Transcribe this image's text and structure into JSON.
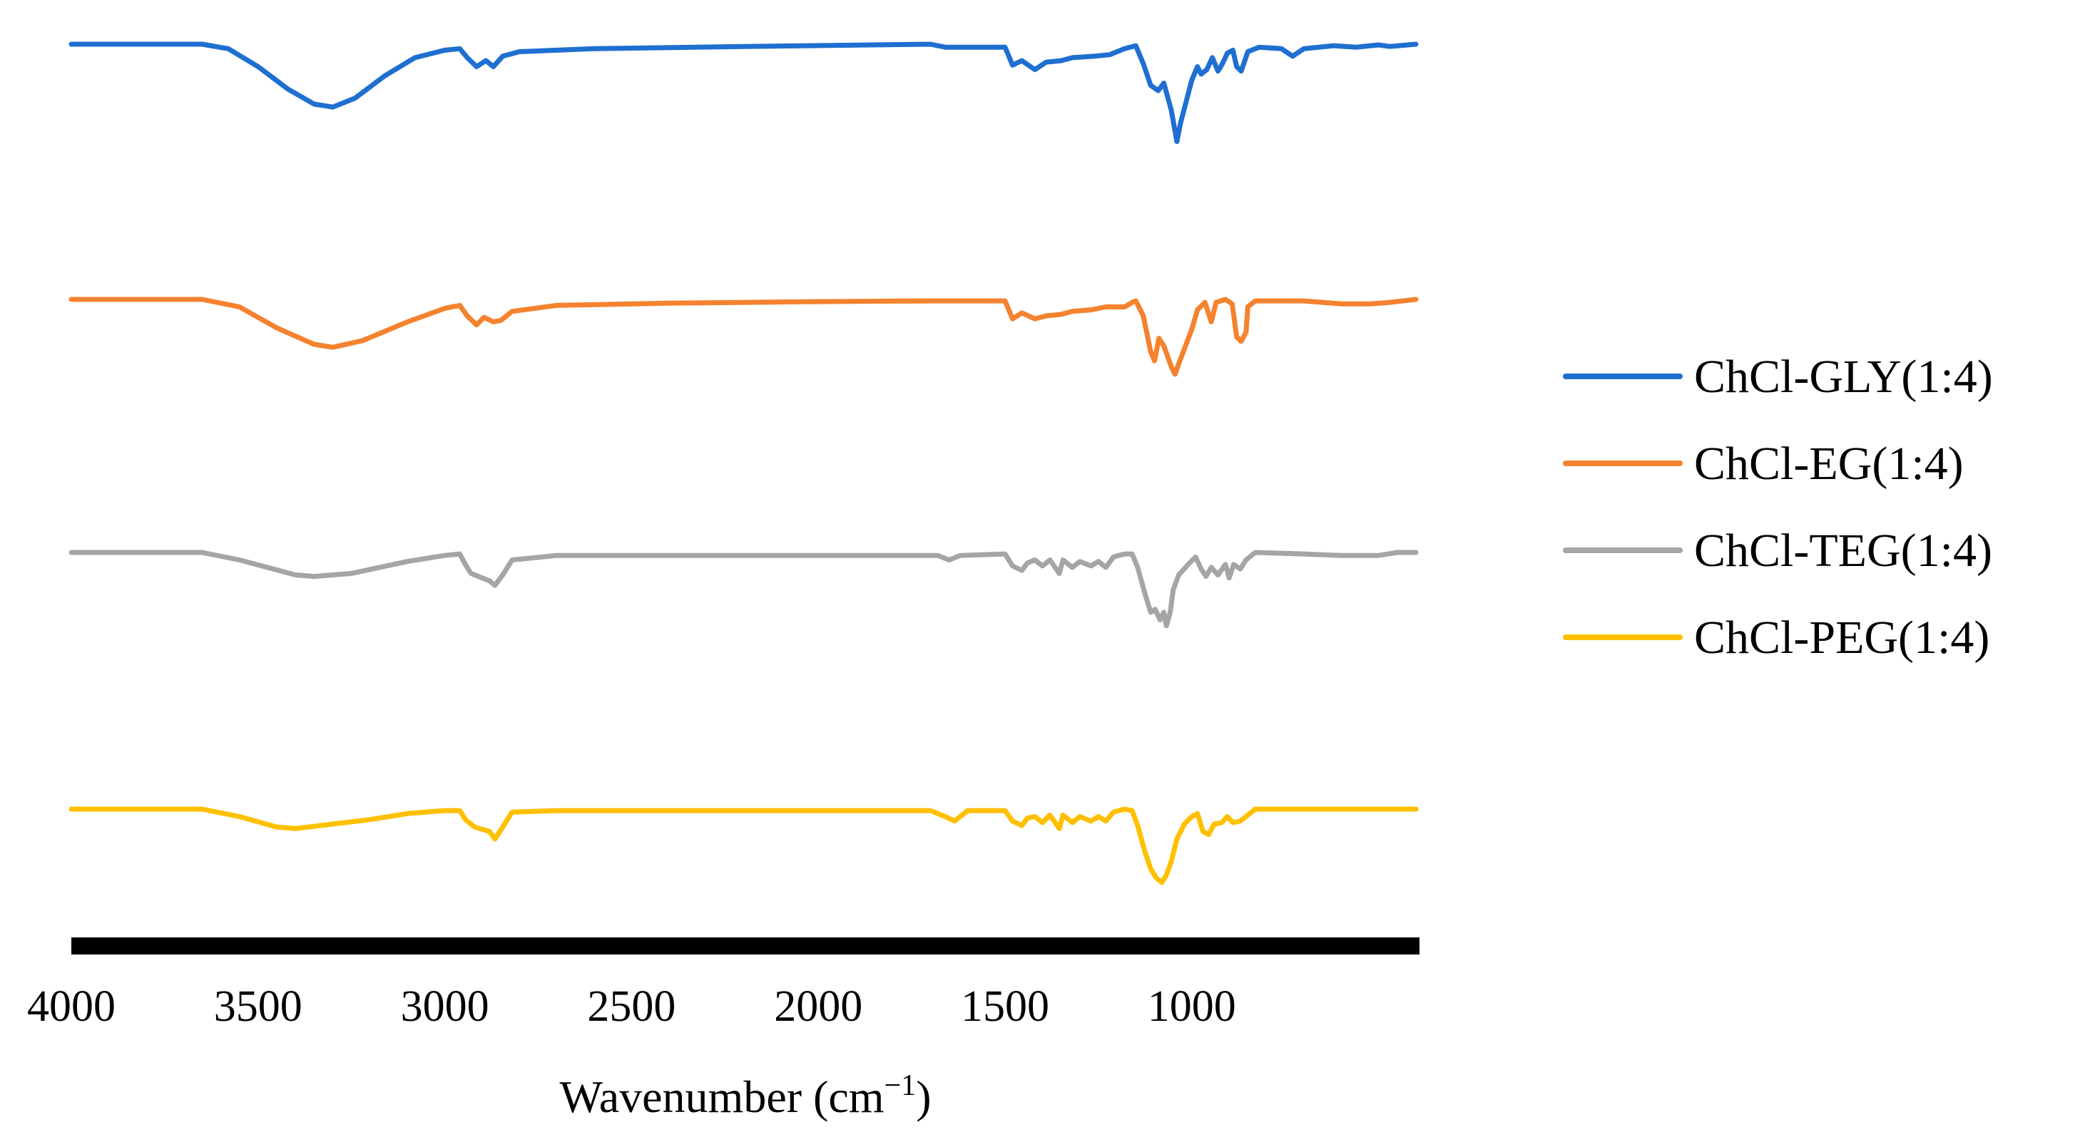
{
  "chart_data": {
    "type": "line",
    "title": "",
    "xlabel_main": "Wavenumber (cm",
    "xlabel_sup": "−1",
    "xlabel_close": ")",
    "ylabel": "",
    "xlim": [
      4000,
      400
    ],
    "x_reversed": true,
    "y_axis_visible": false,
    "grid": false,
    "legend_position": "right",
    "x_ticks": [
      4000,
      3500,
      3000,
      2500,
      2000,
      1500,
      1000
    ],
    "x_tick_labels": [
      "4000",
      "3500",
      "3000",
      "2500",
      "2000",
      "1500",
      "1000"
    ],
    "series": [
      {
        "name": "ChCl-GLY(1:4)",
        "color": "#1F6FD1",
        "offset": 3,
        "points": [
          [
            4000,
            0
          ],
          [
            3650,
            0
          ],
          [
            3580,
            -0.06
          ],
          [
            3500,
            -0.3
          ],
          [
            3420,
            -0.6
          ],
          [
            3350,
            -0.8
          ],
          [
            3300,
            -0.84
          ],
          [
            3240,
            -0.72
          ],
          [
            3160,
            -0.42
          ],
          [
            3080,
            -0.18
          ],
          [
            3000,
            -0.08
          ],
          [
            2960,
            -0.06
          ],
          [
            2940,
            -0.18
          ],
          [
            2915,
            -0.3
          ],
          [
            2890,
            -0.22
          ],
          [
            2870,
            -0.3
          ],
          [
            2845,
            -0.16
          ],
          [
            2800,
            -0.1
          ],
          [
            2600,
            -0.06
          ],
          [
            2200,
            -0.03
          ],
          [
            1700,
            0
          ],
          [
            1660,
            -0.04
          ],
          [
            1500,
            -0.04
          ],
          [
            1480,
            -0.28
          ],
          [
            1455,
            -0.22
          ],
          [
            1420,
            -0.34
          ],
          [
            1390,
            -0.24
          ],
          [
            1350,
            -0.22
          ],
          [
            1320,
            -0.18
          ],
          [
            1260,
            -0.16
          ],
          [
            1220,
            -0.14
          ],
          [
            1180,
            -0.06
          ],
          [
            1150,
            -0.02
          ],
          [
            1130,
            -0.26
          ],
          [
            1110,
            -0.55
          ],
          [
            1090,
            -0.62
          ],
          [
            1075,
            -0.52
          ],
          [
            1055,
            -0.88
          ],
          [
            1040,
            -1.3
          ],
          [
            1030,
            -1.05
          ],
          [
            1000,
            -0.48
          ],
          [
            985,
            -0.3
          ],
          [
            975,
            -0.4
          ],
          [
            960,
            -0.34
          ],
          [
            945,
            -0.18
          ],
          [
            930,
            -0.36
          ],
          [
            918,
            -0.26
          ],
          [
            905,
            -0.12
          ],
          [
            890,
            -0.08
          ],
          [
            880,
            -0.3
          ],
          [
            868,
            -0.36
          ],
          [
            850,
            -0.1
          ],
          [
            820,
            -0.04
          ],
          [
            760,
            -0.06
          ],
          [
            730,
            -0.16
          ],
          [
            700,
            -0.06
          ],
          [
            620,
            -0.02
          ],
          [
            560,
            -0.04
          ],
          [
            500,
            -0.01
          ],
          [
            470,
            -0.03
          ],
          [
            400,
            0
          ]
        ]
      },
      {
        "name": "ChCl-EG(1:4)",
        "color": "#F5822E",
        "offset": 2,
        "points": [
          [
            4000,
            0
          ],
          [
            3650,
            0
          ],
          [
            3550,
            -0.1
          ],
          [
            3450,
            -0.38
          ],
          [
            3350,
            -0.6
          ],
          [
            3300,
            -0.64
          ],
          [
            3220,
            -0.55
          ],
          [
            3100,
            -0.3
          ],
          [
            3000,
            -0.12
          ],
          [
            2960,
            -0.08
          ],
          [
            2940,
            -0.22
          ],
          [
            2915,
            -0.34
          ],
          [
            2895,
            -0.24
          ],
          [
            2870,
            -0.3
          ],
          [
            2850,
            -0.28
          ],
          [
            2820,
            -0.16
          ],
          [
            2700,
            -0.08
          ],
          [
            2400,
            -0.05
          ],
          [
            2000,
            -0.03
          ],
          [
            1700,
            -0.02
          ],
          [
            1500,
            -0.02
          ],
          [
            1480,
            -0.26
          ],
          [
            1455,
            -0.18
          ],
          [
            1420,
            -0.26
          ],
          [
            1390,
            -0.22
          ],
          [
            1350,
            -0.2
          ],
          [
            1320,
            -0.16
          ],
          [
            1270,
            -0.14
          ],
          [
            1230,
            -0.1
          ],
          [
            1180,
            -0.1
          ],
          [
            1160,
            -0.04
          ],
          [
            1150,
            -0.02
          ],
          [
            1130,
            -0.22
          ],
          [
            1110,
            -0.7
          ],
          [
            1100,
            -0.82
          ],
          [
            1088,
            -0.52
          ],
          [
            1075,
            -0.62
          ],
          [
            1055,
            -0.9
          ],
          [
            1045,
            -1.0
          ],
          [
            1035,
            -0.86
          ],
          [
            1000,
            -0.4
          ],
          [
            985,
            -0.14
          ],
          [
            965,
            -0.04
          ],
          [
            948,
            -0.3
          ],
          [
            935,
            -0.04
          ],
          [
            910,
            0
          ],
          [
            892,
            -0.06
          ],
          [
            880,
            -0.5
          ],
          [
            868,
            -0.56
          ],
          [
            855,
            -0.44
          ],
          [
            850,
            -0.1
          ],
          [
            830,
            -0.02
          ],
          [
            700,
            -0.02
          ],
          [
            600,
            -0.06
          ],
          [
            520,
            -0.06
          ],
          [
            470,
            -0.04
          ],
          [
            400,
            0
          ]
        ]
      },
      {
        "name": "ChCl-TEG(1:4)",
        "color": "#A5A5A5",
        "offset": 1,
        "points": [
          [
            4000,
            0
          ],
          [
            3650,
            0
          ],
          [
            3550,
            -0.1
          ],
          [
            3400,
            -0.3
          ],
          [
            3350,
            -0.32
          ],
          [
            3250,
            -0.28
          ],
          [
            3100,
            -0.12
          ],
          [
            3000,
            -0.04
          ],
          [
            2960,
            -0.02
          ],
          [
            2945,
            -0.16
          ],
          [
            2930,
            -0.28
          ],
          [
            2900,
            -0.34
          ],
          [
            2880,
            -0.38
          ],
          [
            2866,
            -0.44
          ],
          [
            2845,
            -0.3
          ],
          [
            2820,
            -0.1
          ],
          [
            2700,
            -0.04
          ],
          [
            2000,
            -0.04
          ],
          [
            1680,
            -0.04
          ],
          [
            1650,
            -0.1
          ],
          [
            1620,
            -0.04
          ],
          [
            1500,
            -0.02
          ],
          [
            1480,
            -0.18
          ],
          [
            1455,
            -0.24
          ],
          [
            1440,
            -0.14
          ],
          [
            1420,
            -0.1
          ],
          [
            1400,
            -0.18
          ],
          [
            1380,
            -0.1
          ],
          [
            1355,
            -0.28
          ],
          [
            1345,
            -0.1
          ],
          [
            1320,
            -0.2
          ],
          [
            1300,
            -0.12
          ],
          [
            1270,
            -0.18
          ],
          [
            1250,
            -0.12
          ],
          [
            1230,
            -0.2
          ],
          [
            1210,
            -0.06
          ],
          [
            1180,
            -0.02
          ],
          [
            1160,
            -0.02
          ],
          [
            1145,
            -0.2
          ],
          [
            1125,
            -0.56
          ],
          [
            1110,
            -0.8
          ],
          [
            1098,
            -0.76
          ],
          [
            1085,
            -0.9
          ],
          [
            1075,
            -0.8
          ],
          [
            1068,
            -0.98
          ],
          [
            1058,
            -0.8
          ],
          [
            1050,
            -0.5
          ],
          [
            1035,
            -0.3
          ],
          [
            1010,
            -0.16
          ],
          [
            990,
            -0.06
          ],
          [
            975,
            -0.22
          ],
          [
            962,
            -0.32
          ],
          [
            948,
            -0.2
          ],
          [
            930,
            -0.3
          ],
          [
            910,
            -0.16
          ],
          [
            900,
            -0.34
          ],
          [
            888,
            -0.16
          ],
          [
            870,
            -0.22
          ],
          [
            855,
            -0.1
          ],
          [
            830,
            0
          ],
          [
            700,
            -0.02
          ],
          [
            600,
            -0.04
          ],
          [
            500,
            -0.04
          ],
          [
            450,
            0
          ],
          [
            400,
            0
          ]
        ]
      },
      {
        "name": "ChCl-PEG(1:4)",
        "color": "#FFC000",
        "offset": 0,
        "points": [
          [
            4000,
            0
          ],
          [
            3650,
            0
          ],
          [
            3550,
            -0.1
          ],
          [
            3450,
            -0.24
          ],
          [
            3400,
            -0.26
          ],
          [
            3300,
            -0.2
          ],
          [
            3200,
            -0.14
          ],
          [
            3100,
            -0.06
          ],
          [
            3000,
            -0.02
          ],
          [
            2960,
            -0.02
          ],
          [
            2945,
            -0.14
          ],
          [
            2920,
            -0.24
          ],
          [
            2880,
            -0.3
          ],
          [
            2866,
            -0.4
          ],
          [
            2845,
            -0.24
          ],
          [
            2820,
            -0.04
          ],
          [
            2700,
            -0.02
          ],
          [
            2000,
            -0.02
          ],
          [
            1700,
            -0.02
          ],
          [
            1660,
            -0.1
          ],
          [
            1635,
            -0.16
          ],
          [
            1600,
            -0.02
          ],
          [
            1500,
            -0.02
          ],
          [
            1480,
            -0.16
          ],
          [
            1455,
            -0.22
          ],
          [
            1440,
            -0.12
          ],
          [
            1420,
            -0.1
          ],
          [
            1400,
            -0.18
          ],
          [
            1380,
            -0.08
          ],
          [
            1355,
            -0.26
          ],
          [
            1345,
            -0.08
          ],
          [
            1320,
            -0.18
          ],
          [
            1300,
            -0.1
          ],
          [
            1270,
            -0.16
          ],
          [
            1250,
            -0.1
          ],
          [
            1230,
            -0.16
          ],
          [
            1210,
            -0.04
          ],
          [
            1180,
            0
          ],
          [
            1160,
            -0.02
          ],
          [
            1145,
            -0.22
          ],
          [
            1125,
            -0.58
          ],
          [
            1110,
            -0.8
          ],
          [
            1095,
            -0.92
          ],
          [
            1080,
            -0.98
          ],
          [
            1068,
            -0.88
          ],
          [
            1055,
            -0.7
          ],
          [
            1040,
            -0.4
          ],
          [
            1020,
            -0.2
          ],
          [
            1000,
            -0.1
          ],
          [
            985,
            -0.06
          ],
          [
            970,
            -0.3
          ],
          [
            955,
            -0.34
          ],
          [
            940,
            -0.2
          ],
          [
            920,
            -0.18
          ],
          [
            905,
            -0.1
          ],
          [
            890,
            -0.18
          ],
          [
            870,
            -0.16
          ],
          [
            850,
            -0.08
          ],
          [
            830,
            0
          ],
          [
            400,
            0
          ]
        ]
      }
    ]
  }
}
